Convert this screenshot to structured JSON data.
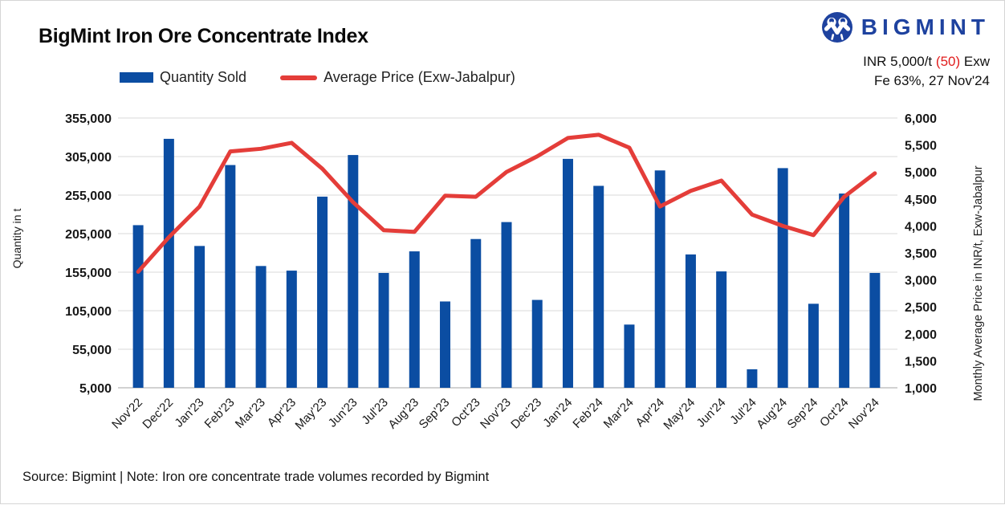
{
  "header": {
    "title": "BigMint Iron Ore Concentrate Index",
    "brand": "BIGMINT",
    "quote": {
      "value": "INR 5,000/t",
      "change": "(50)",
      "unit": "Exw",
      "spec": "Fe 63%, 27 Nov'24"
    }
  },
  "footer": {
    "note": "Source: Bigmint | Note: Iron ore concentrate trade volumes recorded by Bigmint"
  },
  "colors": {
    "bar": "#0b4da2",
    "line": "#e43d39",
    "brand_blue": "#1e429f",
    "change_red": "#e11d1d",
    "grid": "#ececec",
    "axis_line": "#d2d2d2"
  },
  "chart_data": {
    "type": "combo",
    "title": "BigMint Iron Ore Concentrate Index",
    "categories": [
      "Nov'22",
      "Dec'22",
      "Jan'23",
      "Feb'23",
      "Mar'23",
      "Apr'23",
      "May'23",
      "Jun'23",
      "Jul'23",
      "Aug'23",
      "Sep'23",
      "Oct'23",
      "Nov'23",
      "Dec'23",
      "Jan'24",
      "Feb'24",
      "Mar'24",
      "Apr'24",
      "May'24",
      "Jun'24",
      "Jul'24",
      "Aug'24",
      "Sep'24",
      "Oct'24",
      "Nov'24"
    ],
    "series": [
      {
        "name": "Quantity Sold",
        "type": "bar",
        "axis": "left",
        "color": "#0b4da2",
        "values": [
          216000,
          328000,
          189000,
          294000,
          163000,
          157000,
          253000,
          307000,
          154000,
          182000,
          117000,
          198000,
          220000,
          119000,
          302000,
          267000,
          87000,
          287000,
          178000,
          156000,
          29000,
          290000,
          114000,
          257000,
          154000
        ]
      },
      {
        "name": "Average Price (Exw-Jabalpur)",
        "type": "line",
        "axis": "right",
        "color": "#e43d39",
        "values": [
          3150,
          3790,
          4360,
          5380,
          5430,
          5540,
          5060,
          4440,
          3920,
          3890,
          4560,
          4540,
          5000,
          5290,
          5630,
          5690,
          5450,
          4360,
          4650,
          4840,
          4210,
          4000,
          3830,
          4540,
          4975
        ]
      }
    ],
    "left_axis": {
      "title": "Quantity in t",
      "min": 5000,
      "max": 355000,
      "step": 50000
    },
    "right_axis": {
      "title": "Monthly Average Price in INR/t, Exw-Jabalpur",
      "min": 1000,
      "max": 6000,
      "step": 500
    },
    "grid": true,
    "legend_position": "top-left"
  }
}
